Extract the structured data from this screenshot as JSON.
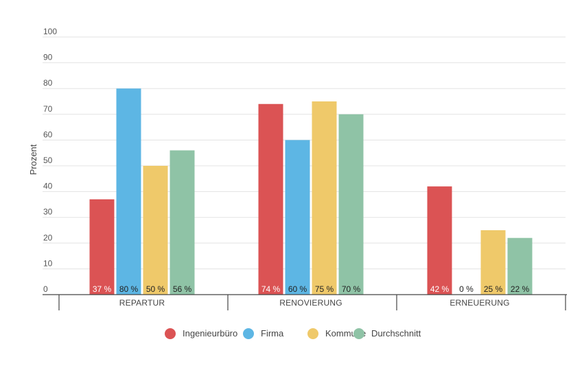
{
  "chart_data": {
    "type": "bar",
    "title": "",
    "xlabel": "",
    "ylabel": "Prozent",
    "ylim": [
      0,
      100
    ],
    "yticks": [
      0,
      10,
      20,
      30,
      40,
      50,
      60,
      70,
      80,
      90,
      100
    ],
    "grid": true,
    "legend_position": "bottom",
    "categories": [
      "REPARTUR",
      "RENOVIERUNG",
      "ERNEUERUNG"
    ],
    "series": [
      {
        "name": "Ingenieurbüro",
        "color": "#db5354",
        "label_color": "#ffffff",
        "values": [
          37,
          74,
          42
        ],
        "labels": [
          "37 %",
          "74 %",
          "42 %"
        ]
      },
      {
        "name": "Firma",
        "color": "#5db6e4",
        "label_color": "#222222",
        "values": [
          80,
          60,
          0
        ],
        "labels": [
          "80 %",
          "60 %",
          "0 %"
        ]
      },
      {
        "name": "Kommune",
        "color": "#efc96a",
        "label_color": "#222222",
        "values": [
          50,
          75,
          25
        ],
        "labels": [
          "50 %",
          "75 %",
          "25 %"
        ]
      },
      {
        "name": "Durchschnitt",
        "color": "#8fc3a6",
        "label_color": "#222222",
        "values": [
          56,
          70,
          22
        ],
        "labels": [
          "56 %",
          "70 %",
          "22 %"
        ]
      }
    ]
  }
}
